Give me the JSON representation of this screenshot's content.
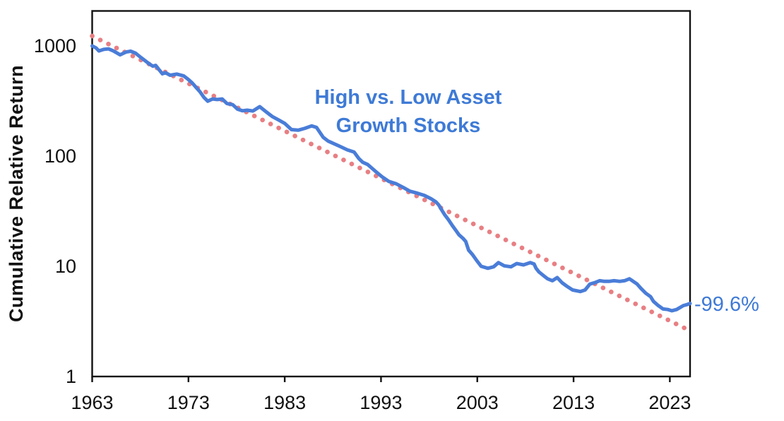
{
  "chart_data": {
    "type": "line",
    "title": "High vs. Low Asset Growth Stocks",
    "title_lines": [
      "High vs. Low Asset",
      "Growth Stocks"
    ],
    "ylabel": "Cumulative Relative Return",
    "xlabel": "",
    "annotation": "-99.6%",
    "y_scale": "log",
    "grid": false,
    "legend": "none",
    "x_range": [
      1963,
      2025.1
    ],
    "ylim": [
      1,
      2100
    ],
    "x_ticks": [
      1963,
      1973,
      1983,
      1993,
      2003,
      2013,
      2023
    ],
    "y_ticks": [
      1,
      10,
      100,
      1000
    ],
    "colors": {
      "axis": "#111111",
      "series_blue": "#4a7dd8",
      "text_blue": "#3e7ad6",
      "trend_pink": "#e87f83"
    },
    "series": [
      {
        "name": "High vs. Low Asset Growth Stocks cumulative relative return",
        "type": "line",
        "color": "#4a7dd8",
        "points": [
          [
            1963.0,
            1000
          ],
          [
            1963.4,
            960
          ],
          [
            1963.7,
            900
          ],
          [
            1964.2,
            930
          ],
          [
            1964.7,
            940
          ],
          [
            1965.2,
            900
          ],
          [
            1965.9,
            830
          ],
          [
            1966.5,
            880
          ],
          [
            1967.0,
            895
          ],
          [
            1967.5,
            860
          ],
          [
            1968.1,
            780
          ],
          [
            1968.9,
            690
          ],
          [
            1969.3,
            655
          ],
          [
            1969.6,
            665
          ],
          [
            1969.9,
            615
          ],
          [
            1970.3,
            558
          ],
          [
            1970.6,
            572
          ],
          [
            1971.1,
            542
          ],
          [
            1971.8,
            555
          ],
          [
            1972.5,
            535
          ],
          [
            1973.0,
            495
          ],
          [
            1973.4,
            460
          ],
          [
            1973.8,
            420
          ],
          [
            1974.2,
            383
          ],
          [
            1974.6,
            342
          ],
          [
            1975.0,
            315
          ],
          [
            1975.5,
            330
          ],
          [
            1976.0,
            326
          ],
          [
            1976.5,
            330
          ],
          [
            1977.0,
            300
          ],
          [
            1977.6,
            293
          ],
          [
            1978.1,
            267
          ],
          [
            1978.6,
            258
          ],
          [
            1979.1,
            261
          ],
          [
            1979.7,
            257
          ],
          [
            1980.4,
            281
          ],
          [
            1981.0,
            255
          ],
          [
            1981.7,
            229
          ],
          [
            1982.4,
            212
          ],
          [
            1983.0,
            198
          ],
          [
            1983.7,
            174
          ],
          [
            1984.4,
            172
          ],
          [
            1985.1,
            179
          ],
          [
            1985.8,
            188
          ],
          [
            1986.3,
            182
          ],
          [
            1987.0,
            148
          ],
          [
            1987.5,
            137
          ],
          [
            1988.7,
            123
          ],
          [
            1989.5,
            114
          ],
          [
            1990.2,
            109
          ],
          [
            1990.7,
            95
          ],
          [
            1991.1,
            88
          ],
          [
            1991.6,
            84
          ],
          [
            1992.4,
            73
          ],
          [
            1993.1,
            65
          ],
          [
            1993.8,
            59
          ],
          [
            1994.6,
            56
          ],
          [
            1995.3,
            52
          ],
          [
            1996.0,
            48
          ],
          [
            1996.8,
            46
          ],
          [
            1997.5,
            44
          ],
          [
            1998.2,
            41
          ],
          [
            1998.7,
            38.5
          ],
          [
            1999.0,
            36
          ],
          [
            1999.3,
            32.5
          ],
          [
            1999.6,
            29.5
          ],
          [
            2000.0,
            26.5
          ],
          [
            2000.4,
            23.5
          ],
          [
            2000.8,
            21
          ],
          [
            2001.1,
            19.3
          ],
          [
            2001.5,
            18
          ],
          [
            2001.8,
            16.8
          ],
          [
            2002.1,
            14
          ],
          [
            2002.5,
            12.8
          ],
          [
            2002.9,
            11.4
          ],
          [
            2003.4,
            10.0
          ],
          [
            2004.1,
            9.6
          ],
          [
            2004.7,
            9.9
          ],
          [
            2005.2,
            10.8
          ],
          [
            2005.8,
            10.1
          ],
          [
            2006.5,
            9.9
          ],
          [
            2007.1,
            10.6
          ],
          [
            2007.8,
            10.3
          ],
          [
            2008.5,
            10.8
          ],
          [
            2008.9,
            10.5
          ],
          [
            2009.1,
            9.6
          ],
          [
            2009.4,
            8.9
          ],
          [
            2009.9,
            8.2
          ],
          [
            2010.3,
            7.7
          ],
          [
            2010.8,
            7.4
          ],
          [
            2011.3,
            7.9
          ],
          [
            2011.8,
            7.1
          ],
          [
            2012.3,
            6.6
          ],
          [
            2012.9,
            6.1
          ],
          [
            2013.7,
            5.9
          ],
          [
            2014.2,
            6.1
          ],
          [
            2014.7,
            6.9
          ],
          [
            2015.2,
            7.1
          ],
          [
            2015.7,
            7.4
          ],
          [
            2016.2,
            7.3
          ],
          [
            2016.7,
            7.3
          ],
          [
            2017.2,
            7.4
          ],
          [
            2017.8,
            7.3
          ],
          [
            2018.3,
            7.4
          ],
          [
            2018.8,
            7.7
          ],
          [
            2019.1,
            7.4
          ],
          [
            2019.6,
            6.9
          ],
          [
            2020.0,
            6.3
          ],
          [
            2020.5,
            5.7
          ],
          [
            2021.0,
            5.3
          ],
          [
            2021.3,
            4.8
          ],
          [
            2021.8,
            4.4
          ],
          [
            2022.3,
            4.1
          ],
          [
            2022.8,
            4.05
          ],
          [
            2023.2,
            3.95
          ],
          [
            2023.7,
            4.05
          ],
          [
            2024.0,
            4.2
          ],
          [
            2024.4,
            4.4
          ],
          [
            2024.8,
            4.5
          ],
          [
            2025.1,
            4.6
          ]
        ]
      },
      {
        "name": "Exponential trend line",
        "type": "dotted-line",
        "color": "#e87f83",
        "points": [
          [
            1963.0,
            1230
          ],
          [
            2025.1,
            2.6
          ]
        ]
      }
    ]
  }
}
